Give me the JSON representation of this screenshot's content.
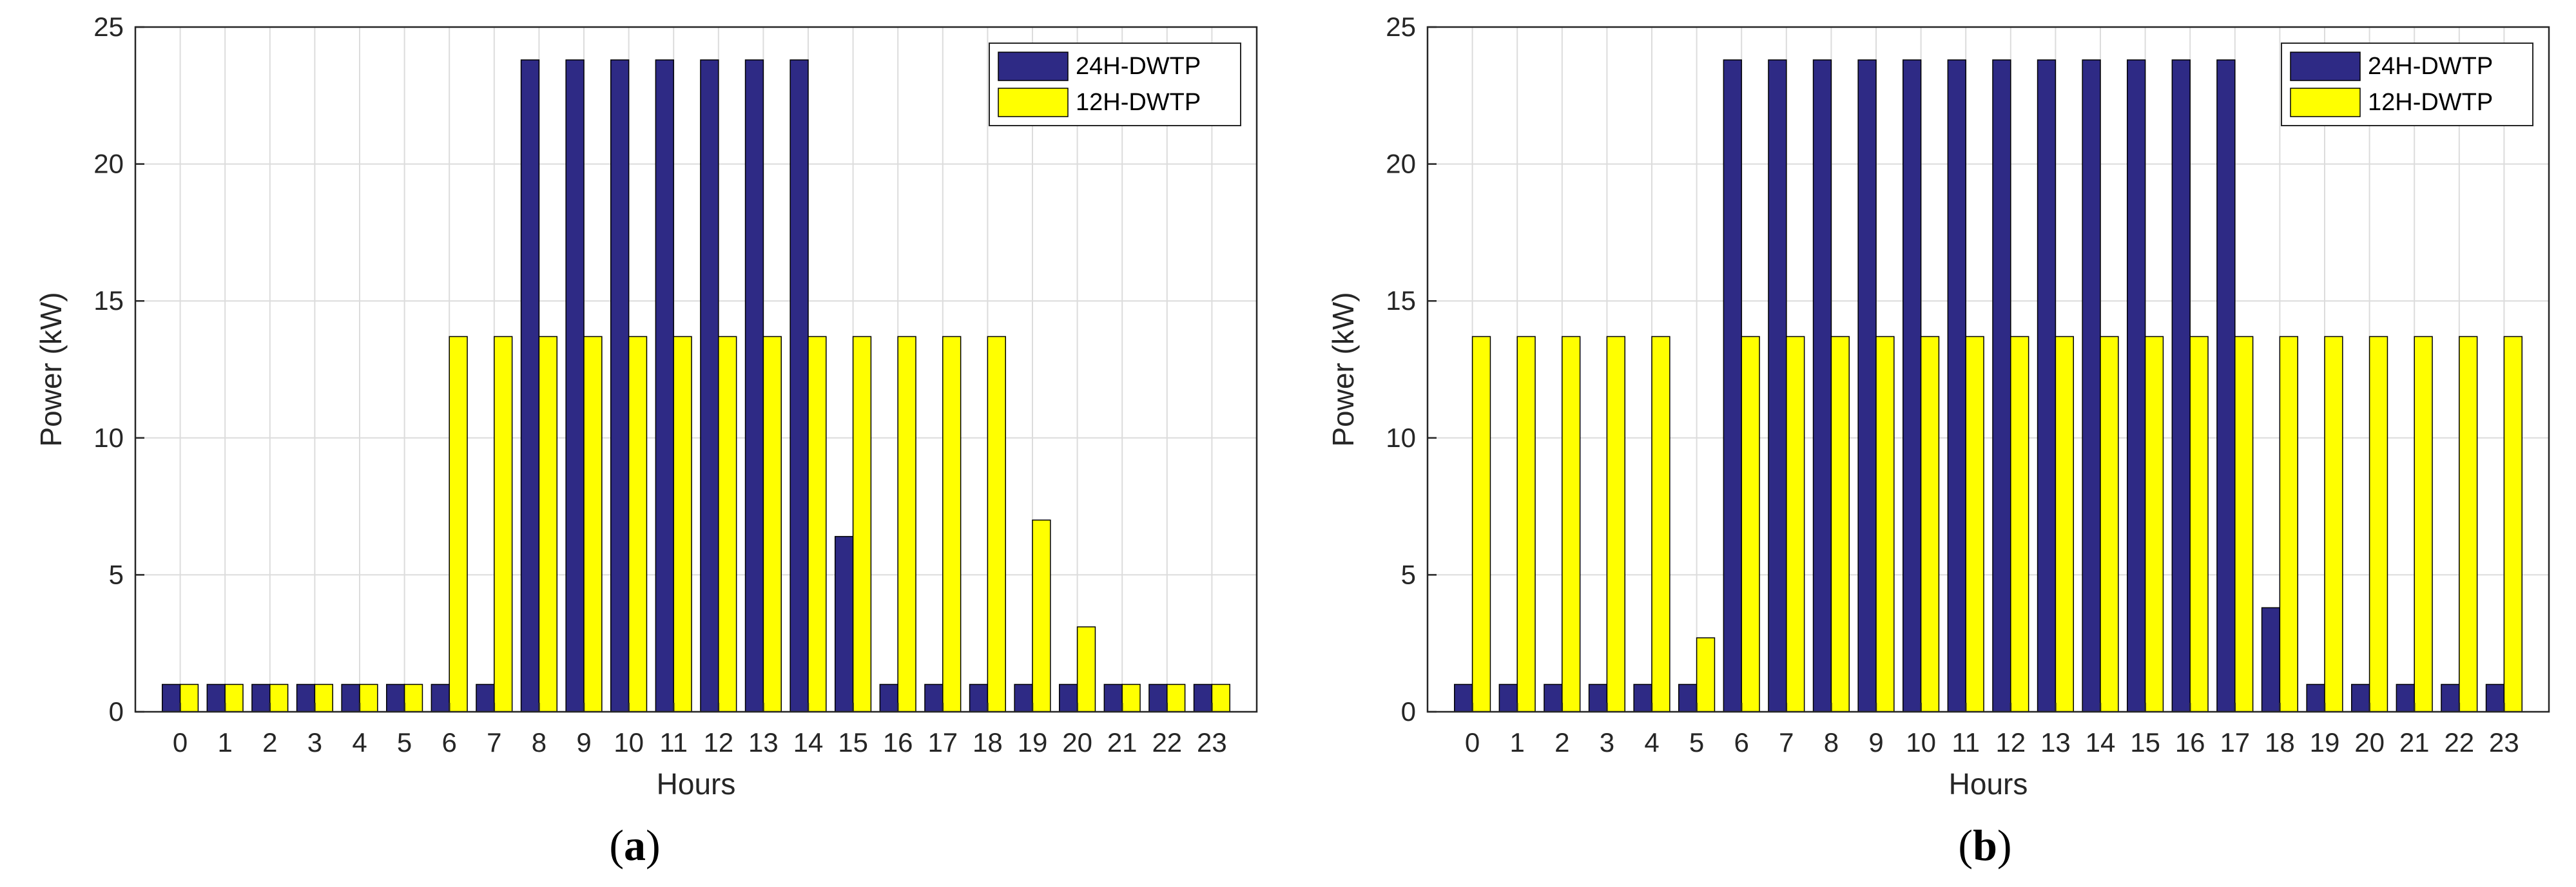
{
  "chart_data": [
    {
      "type": "bar",
      "panel_label": "(a)",
      "xlabel": "Hours",
      "ylabel": "Power (kW)",
      "ylim": [
        0,
        25
      ],
      "yticks": [
        "0",
        "5",
        "10",
        "15",
        "20",
        "25"
      ],
      "grid": true,
      "legend_position": "top-right",
      "categories": [
        "0",
        "1",
        "2",
        "3",
        "4",
        "5",
        "6",
        "7",
        "8",
        "9",
        "10",
        "11",
        "12",
        "13",
        "14",
        "15",
        "16",
        "17",
        "18",
        "19",
        "20",
        "21",
        "22",
        "23"
      ],
      "series": [
        {
          "name": "24H-DWTP",
          "color": "#2e2a85",
          "values": [
            1,
            1,
            1,
            1,
            1,
            1,
            1,
            1,
            23.8,
            23.8,
            23.8,
            23.8,
            23.8,
            23.8,
            23.8,
            6.4,
            1,
            1,
            1,
            1,
            1,
            1,
            1,
            1
          ]
        },
        {
          "name": "12H-DWTP",
          "color": "#ffff00",
          "values": [
            1,
            1,
            1,
            1,
            1,
            1,
            13.7,
            13.7,
            13.7,
            13.7,
            13.7,
            13.7,
            13.7,
            13.7,
            13.7,
            13.7,
            13.7,
            13.7,
            13.7,
            7,
            3.1,
            1,
            1,
            1
          ]
        }
      ]
    },
    {
      "type": "bar",
      "panel_label": "(b)",
      "xlabel": "Hours",
      "ylabel": "Power (kW)",
      "ylim": [
        0,
        25
      ],
      "yticks": [
        "0",
        "5",
        "10",
        "15",
        "20",
        "25"
      ],
      "grid": true,
      "legend_position": "top-right",
      "categories": [
        "0",
        "1",
        "2",
        "3",
        "4",
        "5",
        "6",
        "7",
        "8",
        "9",
        "10",
        "11",
        "12",
        "13",
        "14",
        "15",
        "16",
        "17",
        "18",
        "19",
        "20",
        "21",
        "22",
        "23"
      ],
      "series": [
        {
          "name": "24H-DWTP",
          "color": "#2e2a85",
          "values": [
            1,
            1,
            1,
            1,
            1,
            1,
            23.8,
            23.8,
            23.8,
            23.8,
            23.8,
            23.8,
            23.8,
            23.8,
            23.8,
            23.8,
            23.8,
            23.8,
            3.8,
            1,
            1,
            1,
            1,
            1
          ]
        },
        {
          "name": "12H-DWTP",
          "color": "#ffff00",
          "values": [
            13.7,
            13.7,
            13.7,
            13.7,
            13.7,
            2.7,
            13.7,
            13.7,
            13.7,
            13.7,
            13.7,
            13.7,
            13.7,
            13.7,
            13.7,
            13.7,
            13.7,
            13.7,
            13.7,
            13.7,
            13.7,
            13.7,
            13.7,
            13.7
          ]
        }
      ]
    }
  ]
}
